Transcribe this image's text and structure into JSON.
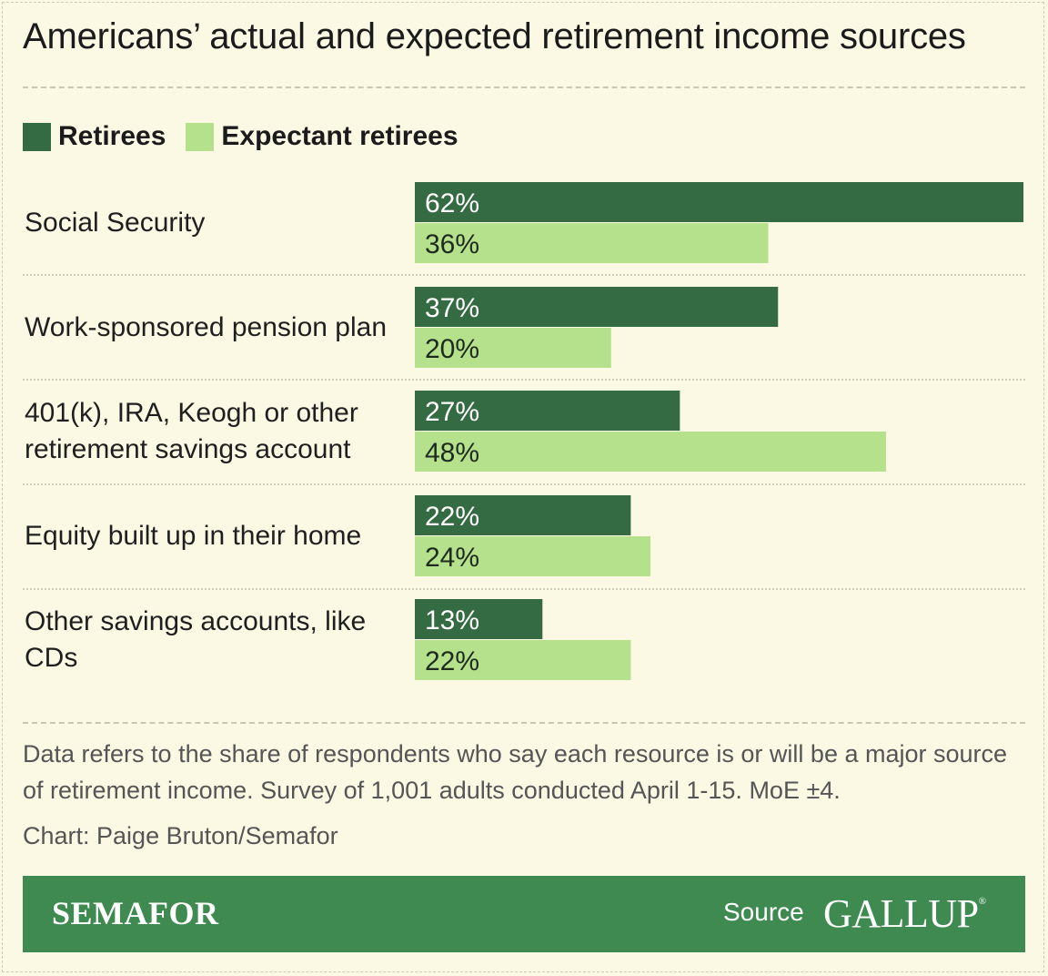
{
  "title": "Americans’ actual and expected retirement income sources",
  "colors": {
    "retirees": "#356b42",
    "expectant": "#b5e18c",
    "footer": "#3f8a50"
  },
  "chart_data": {
    "type": "bar",
    "orientation": "horizontal",
    "title": "Americans’ actual and expected retirement income sources",
    "categories": [
      "Social Security",
      "Work-sponsored pension plan",
      "401(k), IRA, Keogh or other retirement savings account",
      "Equity built up in their home",
      "Other savings accounts, like CDs"
    ],
    "series": [
      {
        "name": "Retirees",
        "values": [
          62,
          37,
          27,
          22,
          13
        ]
      },
      {
        "name": "Expectant retirees",
        "values": [
          36,
          20,
          48,
          24,
          22
        ]
      }
    ],
    "value_suffix": "%",
    "xlim": [
      0,
      62
    ],
    "legend": "top-left",
    "grid": false
  },
  "note": "Data refers to the share of respondents who say each resource is or will be a major source of retirement income. Survey of 1,001 adults conducted April 1-15. MoE ±4.",
  "credit": "Chart: Paige Bruton/Semafor",
  "footer": {
    "brand": "SEMAFOR",
    "source_label": "Source",
    "source_name": "GALLUP",
    "source_mark": "®"
  }
}
